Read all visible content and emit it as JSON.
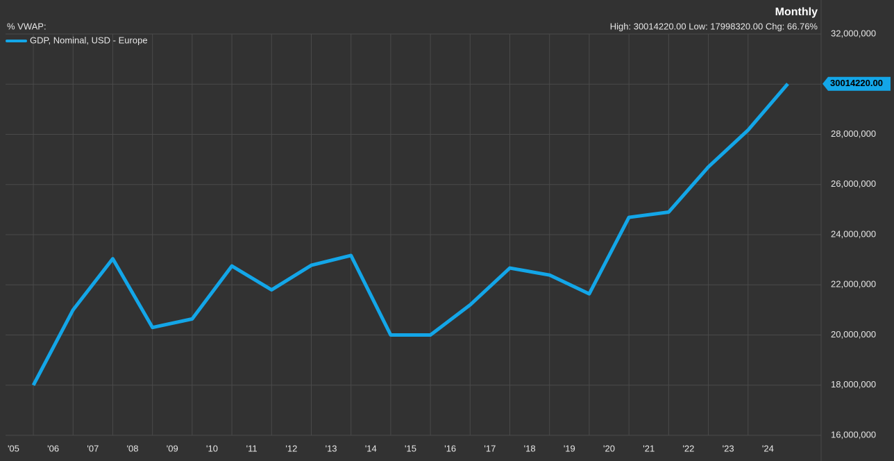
{
  "chart_data": {
    "type": "line",
    "title": "Monthly",
    "indicator": "%  VWAP:",
    "stats": "High: 30014220.00 Low: 17998320.00 Chg: 66.76%",
    "x": [
      2006,
      2007,
      2008,
      2009,
      2010,
      2011,
      2012,
      2013,
      2014,
      2015,
      2016,
      2017,
      2018,
      2019,
      2020,
      2021,
      2022,
      2023,
      2024,
      2025
    ],
    "series": [
      {
        "name": "GDP, Nominal, USD - Europe",
        "color": "#13a6e8",
        "values": [
          17998320,
          21000000,
          23040000,
          20300000,
          20640000,
          22750000,
          21800000,
          22780000,
          23170000,
          20000000,
          20000000,
          21200000,
          22670000,
          22390000,
          21640000,
          24690000,
          24900000,
          26700000,
          28170000,
          30014220
        ],
        "last_value_label": "30014220.00"
      }
    ],
    "xlim": [
      2005.3,
      2025.84
    ],
    "xticks": [
      {
        "value": 2005,
        "label": "'05"
      },
      {
        "value": 2006,
        "label": "'06"
      },
      {
        "value": 2007,
        "label": "'07"
      },
      {
        "value": 2008,
        "label": "'08"
      },
      {
        "value": 2009,
        "label": "'09"
      },
      {
        "value": 2010,
        "label": "'10"
      },
      {
        "value": 2011,
        "label": "'11"
      },
      {
        "value": 2012,
        "label": "'12"
      },
      {
        "value": 2013,
        "label": "'13"
      },
      {
        "value": 2014,
        "label": "'14"
      },
      {
        "value": 2015,
        "label": "'15"
      },
      {
        "value": 2016,
        "label": "'16"
      },
      {
        "value": 2017,
        "label": "'17"
      },
      {
        "value": 2018,
        "label": "'18"
      },
      {
        "value": 2019,
        "label": "'19"
      },
      {
        "value": 2020,
        "label": "'20"
      },
      {
        "value": 2021,
        "label": "'21"
      },
      {
        "value": 2022,
        "label": "'22"
      },
      {
        "value": 2023,
        "label": "'23"
      },
      {
        "value": 2024,
        "label": "'24"
      }
    ],
    "ylim": [
      16000000,
      32000000
    ],
    "yticks": [
      {
        "value": 16000000,
        "label": "16,000,000"
      },
      {
        "value": 18000000,
        "label": "18,000,000"
      },
      {
        "value": 20000000,
        "label": "20,000,000"
      },
      {
        "value": 22000000,
        "label": "22,000,000"
      },
      {
        "value": 24000000,
        "label": "24,000,000"
      },
      {
        "value": 26000000,
        "label": "26,000,000"
      },
      {
        "value": 28000000,
        "label": "28,000,000"
      },
      {
        "value": 30000000,
        "label": "30,000,000"
      },
      {
        "value": 32000000,
        "label": "32,000,000"
      }
    ],
    "grid": true
  }
}
